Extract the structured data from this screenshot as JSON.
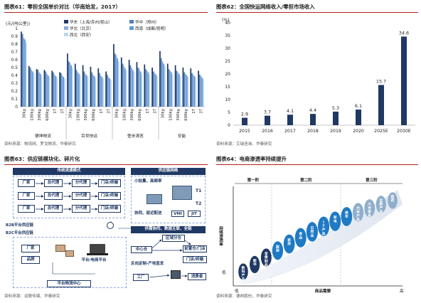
{
  "fig61": {
    "header": "图表61：零担全国单价对比（华南始发，2017）",
    "source": "资料来源：物流网、罗戈物流、华泰研究",
    "chart_data": {
      "type": "bar",
      "ylabel": "(元/(吨公里))",
      "ylim": [
        0,
        1
      ],
      "yticks": [
        "0",
        "0.1",
        "0.2",
        "0.3",
        "0.4",
        "0.5",
        "0.6",
        "0.7",
        "0.8",
        "0.9",
        "1"
      ],
      "weights": [
        "30kg",
        "100kg",
        "300kg",
        "600kg",
        "1T",
        "3T"
      ],
      "groups": [
        "德坤物流",
        "百世快运",
        "壹米滴答",
        "安能"
      ],
      "series": [
        {
          "name": "华东（上海/苏州/昆山）",
          "color": "#1f3864",
          "values": [
            [
              0.96,
              0.52,
              0.48,
              0.47,
              0.46,
              0.44
            ],
            [
              0.68,
              0.55,
              0.53,
              0.51,
              0.49,
              0.45
            ],
            [
              0.8,
              0.63,
              0.6,
              0.57,
              0.54,
              0.5
            ],
            [
              0.71,
              0.55,
              0.53,
              0.5,
              0.49,
              0.46
            ]
          ]
        },
        {
          "name": "华中（郑州）",
          "color": "#4f81bd",
          "values": [
            [
              0.93,
              0.5,
              0.47,
              0.45,
              0.44,
              0.43
            ],
            [
              0.58,
              0.47,
              0.45,
              0.44,
              0.43,
              0.41
            ],
            [
              0.68,
              0.55,
              0.53,
              0.5,
              0.48,
              0.45
            ],
            [
              0.62,
              0.48,
              0.46,
              0.44,
              0.43,
              0.41
            ]
          ]
        },
        {
          "name": "华北（北京）",
          "color": "#8eaadb",
          "values": [
            [
              0.88,
              0.47,
              0.44,
              0.42,
              0.41,
              0.4
            ],
            [
              0.56,
              0.44,
              0.42,
              0.41,
              0.4,
              0.38
            ],
            [
              0.66,
              0.52,
              0.5,
              0.48,
              0.46,
              0.43
            ],
            [
              0.58,
              0.46,
              0.44,
              0.42,
              0.41,
              0.39
            ]
          ]
        },
        {
          "name": "西南（成都/昆明）",
          "color": "#5b9bd5",
          "values": [
            [
              0.86,
              0.45,
              0.42,
              0.4,
              0.39,
              0.38
            ],
            [
              0.53,
              0.42,
              0.4,
              0.39,
              0.38,
              0.36
            ],
            [
              0.62,
              0.49,
              0.47,
              0.45,
              0.44,
              0.41
            ],
            [
              0.55,
              0.44,
              0.42,
              0.4,
              0.39,
              0.37
            ]
          ]
        },
        {
          "name": "西北（西安）",
          "color": "#bdd7ee",
          "values": [
            [
              0.82,
              0.43,
              0.4,
              0.38,
              0.37,
              0.36
            ],
            [
              0.5,
              0.4,
              0.38,
              0.37,
              0.36,
              0.34
            ],
            [
              0.58,
              0.46,
              0.44,
              0.42,
              0.41,
              0.39
            ],
            [
              0.52,
              0.41,
              0.39,
              0.38,
              0.37,
              0.35
            ]
          ]
        }
      ]
    }
  },
  "fig62": {
    "header": "图表62：全国快运网络收入/零担市场收入",
    "source": "资料来源：艾瑞咨询、华泰研究",
    "chart_data": {
      "type": "bar",
      "ylabel": "(%)",
      "ylim": [
        0,
        40
      ],
      "yticks": [
        "0",
        "5",
        "10",
        "15",
        "20",
        "25",
        "30",
        "35",
        "40"
      ],
      "categories": [
        "2015",
        "2016",
        "2017",
        "2018",
        "2019",
        "2020",
        "2025E",
        "2030E"
      ],
      "values": [
        2.9,
        3.7,
        4.1,
        4.4,
        5.3,
        6.1,
        15.7,
        34.6
      ],
      "labels": [
        "2.9",
        "3.7",
        "4.1",
        "4.4",
        "5.3",
        "6.1",
        "15.7",
        "34.6"
      ],
      "color": "#1f3864"
    }
  },
  "fig63": {
    "header": "图表63：供应链模块化、碎片化",
    "source": "资料来源：运联传媒、华泰研究",
    "left_title": "传统流通模式",
    "right_title": "供应链网络",
    "row_cells": [
      "厂家",
      "总代理",
      "分代理",
      "门店/终端"
    ],
    "b2b_label": "B2B平台供应链",
    "b2c_label": "B2C平台供应链",
    "b2c_left": [
      "厂家",
      "品牌"
    ],
    "b2c_platform": "平台/电商平台",
    "mid_tag": "平台物流中心",
    "right_top": [
      "小批量、高频率",
      "协同、就近配送"
    ],
    "truck_labels": [
      "T1",
      "T2"
    ],
    "vmi_jit": [
      "VMI",
      "JIT"
    ],
    "right_mid_title": "供需协同、数据互联、全链",
    "right_boxes": [
      "区域分仓",
      "前置仓/门店",
      "门店/终端"
    ],
    "right_left": [
      "中心仓",
      "反向定制-产地直发"
    ],
    "bottom_nodes": [
      "工厂",
      "消费者"
    ]
  },
  "fig64": {
    "header": "图表64：电商渗透率持续提升",
    "source": "资料来源：德邦股份、华泰研究",
    "stage_labels": [
      "第一阶",
      "第二阶",
      "第三阶"
    ],
    "y_axis_label": "网络渗透率",
    "y_low": "低",
    "x_axis_label": "商品需要",
    "x_low": "低",
    "x_high": "高",
    "bubbles": [
      "数码产品",
      "图书",
      "音像制品",
      "服装",
      "家居",
      "食品",
      "日用品",
      "IT产品",
      "家电",
      "美妆",
      "汽车产品",
      "大件家具",
      "生鲜产品",
      "医药"
    ]
  }
}
